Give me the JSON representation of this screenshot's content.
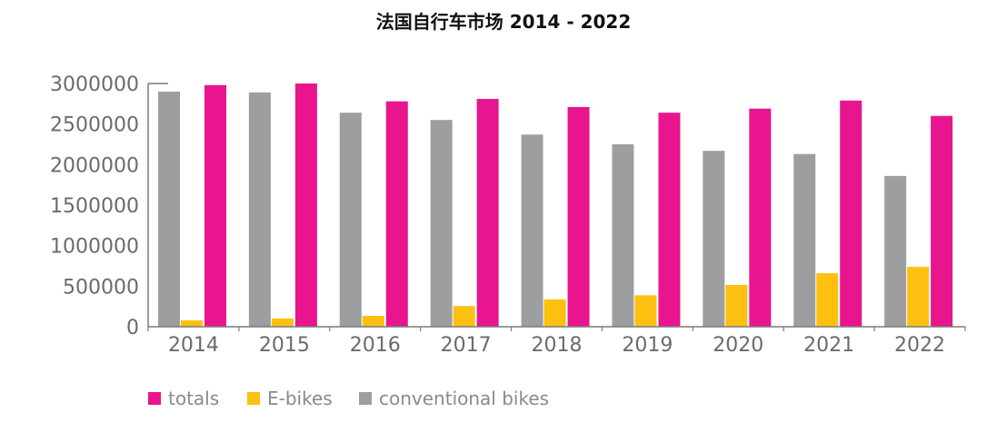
{
  "chart_data": {
    "type": "bar",
    "title": "法国自行车市场   2014 - 2022",
    "xlabel": "",
    "ylabel": "",
    "categories": [
      "2014",
      "2015",
      "2016",
      "2017",
      "2018",
      "2019",
      "2020",
      "2021",
      "2022"
    ],
    "series": [
      {
        "name": "conventional bikes",
        "color": "#9d9e9f",
        "values": [
          2900000,
          2890000,
          2640000,
          2550000,
          2370000,
          2250000,
          2170000,
          2130000,
          1860000
        ]
      },
      {
        "name": "E-bikes",
        "color": "#fdc010",
        "values": [
          78000,
          102000,
          134000,
          255000,
          338000,
          388000,
          515000,
          660000,
          738000
        ]
      },
      {
        "name": "totals",
        "color": "#e8158f",
        "values": [
          2980000,
          3000000,
          2780000,
          2810000,
          2710000,
          2640000,
          2690000,
          2790000,
          2600000
        ]
      }
    ],
    "legend_order": [
      "totals",
      "E-bikes",
      "conventional bikes"
    ],
    "ylim": [
      0,
      3000000
    ],
    "yticks": [
      "0",
      "500000",
      "1000000",
      "1500000",
      "2000000",
      "2500000",
      "3000000"
    ],
    "grid": false,
    "legend_position": "bottom-left"
  }
}
